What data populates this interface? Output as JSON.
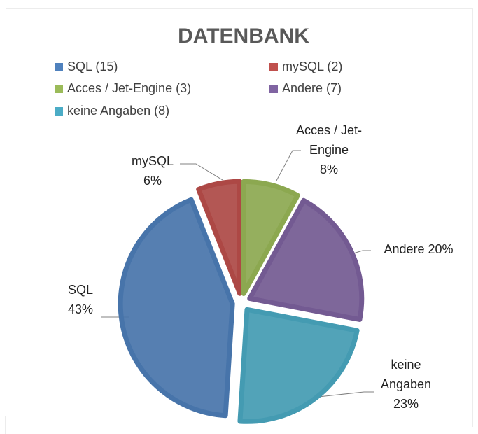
{
  "chart_data": {
    "type": "pie",
    "title": "DATENBANK",
    "categories": [
      "SQL (15)",
      "mySQL (2)",
      "Acces / Jet-Engine (3)",
      "Andere (7)",
      "keine Angaben (8)"
    ],
    "labels": [
      "SQL",
      "mySQL",
      "Acces / Jet-Engine",
      "Andere",
      "keine Angaben"
    ],
    "values": [
      43,
      6,
      8,
      20,
      23
    ],
    "value_labels": [
      "43%",
      "6%",
      "8%",
      "20%",
      "23%"
    ],
    "colors": [
      "#4f81bd",
      "#c0504d",
      "#9bbb59",
      "#8064a2",
      "#4bacc6"
    ]
  }
}
